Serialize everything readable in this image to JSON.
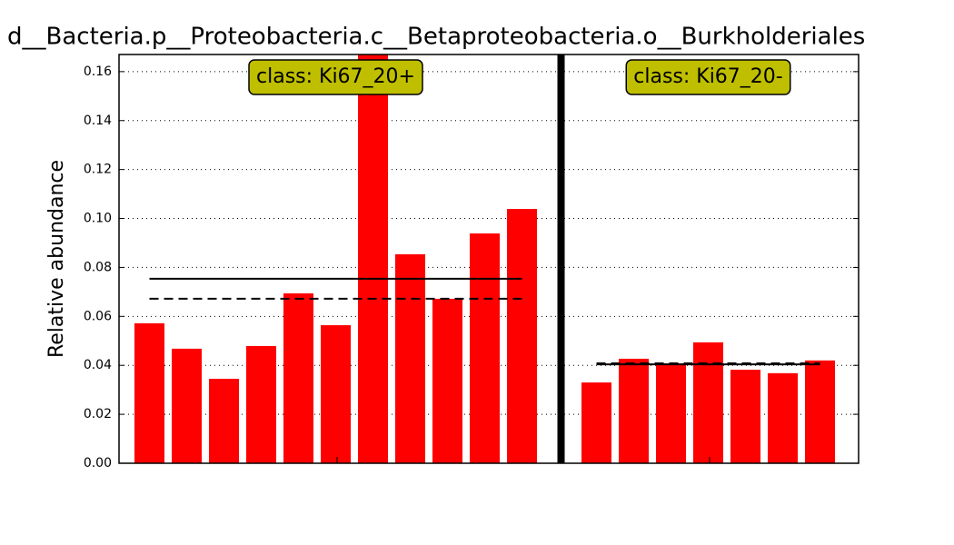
{
  "chart_data": {
    "type": "bar",
    "title": "d__Bacteria.p__Proteobacteria.c__Betaproteobacteria.o__Burkholderiales",
    "y_label": "Relative abundance",
    "ylim": [
      0,
      0.167
    ],
    "yticks": [
      {
        "value": 0,
        "label": "0.00"
      },
      {
        "value": 0.02,
        "label": "0.02"
      },
      {
        "value": 0.04,
        "label": "0.04"
      },
      {
        "value": 0.06,
        "label": "0.06"
      },
      {
        "value": 0.08,
        "label": "0.08"
      },
      {
        "value": 0.1,
        "label": "0.10"
      },
      {
        "value": 0.12,
        "label": "0.12"
      },
      {
        "value": 0.14,
        "label": "0.14"
      },
      {
        "value": 0.16,
        "label": "0.16"
      }
    ],
    "grid": true,
    "color": "#ff0000",
    "label_color": "#bfbf00",
    "groups": [
      {
        "label": "class: Ki67_20+",
        "values": [
          0.0572,
          0.0468,
          0.0345,
          0.0479,
          0.0694,
          0.0564,
          0.17,
          0.0854,
          0.0672,
          0.0939,
          0.1039
        ],
        "mean": 0.0754,
        "median": 0.0672
      },
      {
        "label": "class: Ki67_20-",
        "values": [
          0.033,
          0.0427,
          0.0408,
          0.0494,
          0.0382,
          0.0368,
          0.042
        ],
        "mean": 0.0404,
        "median": 0.0408
      }
    ]
  }
}
